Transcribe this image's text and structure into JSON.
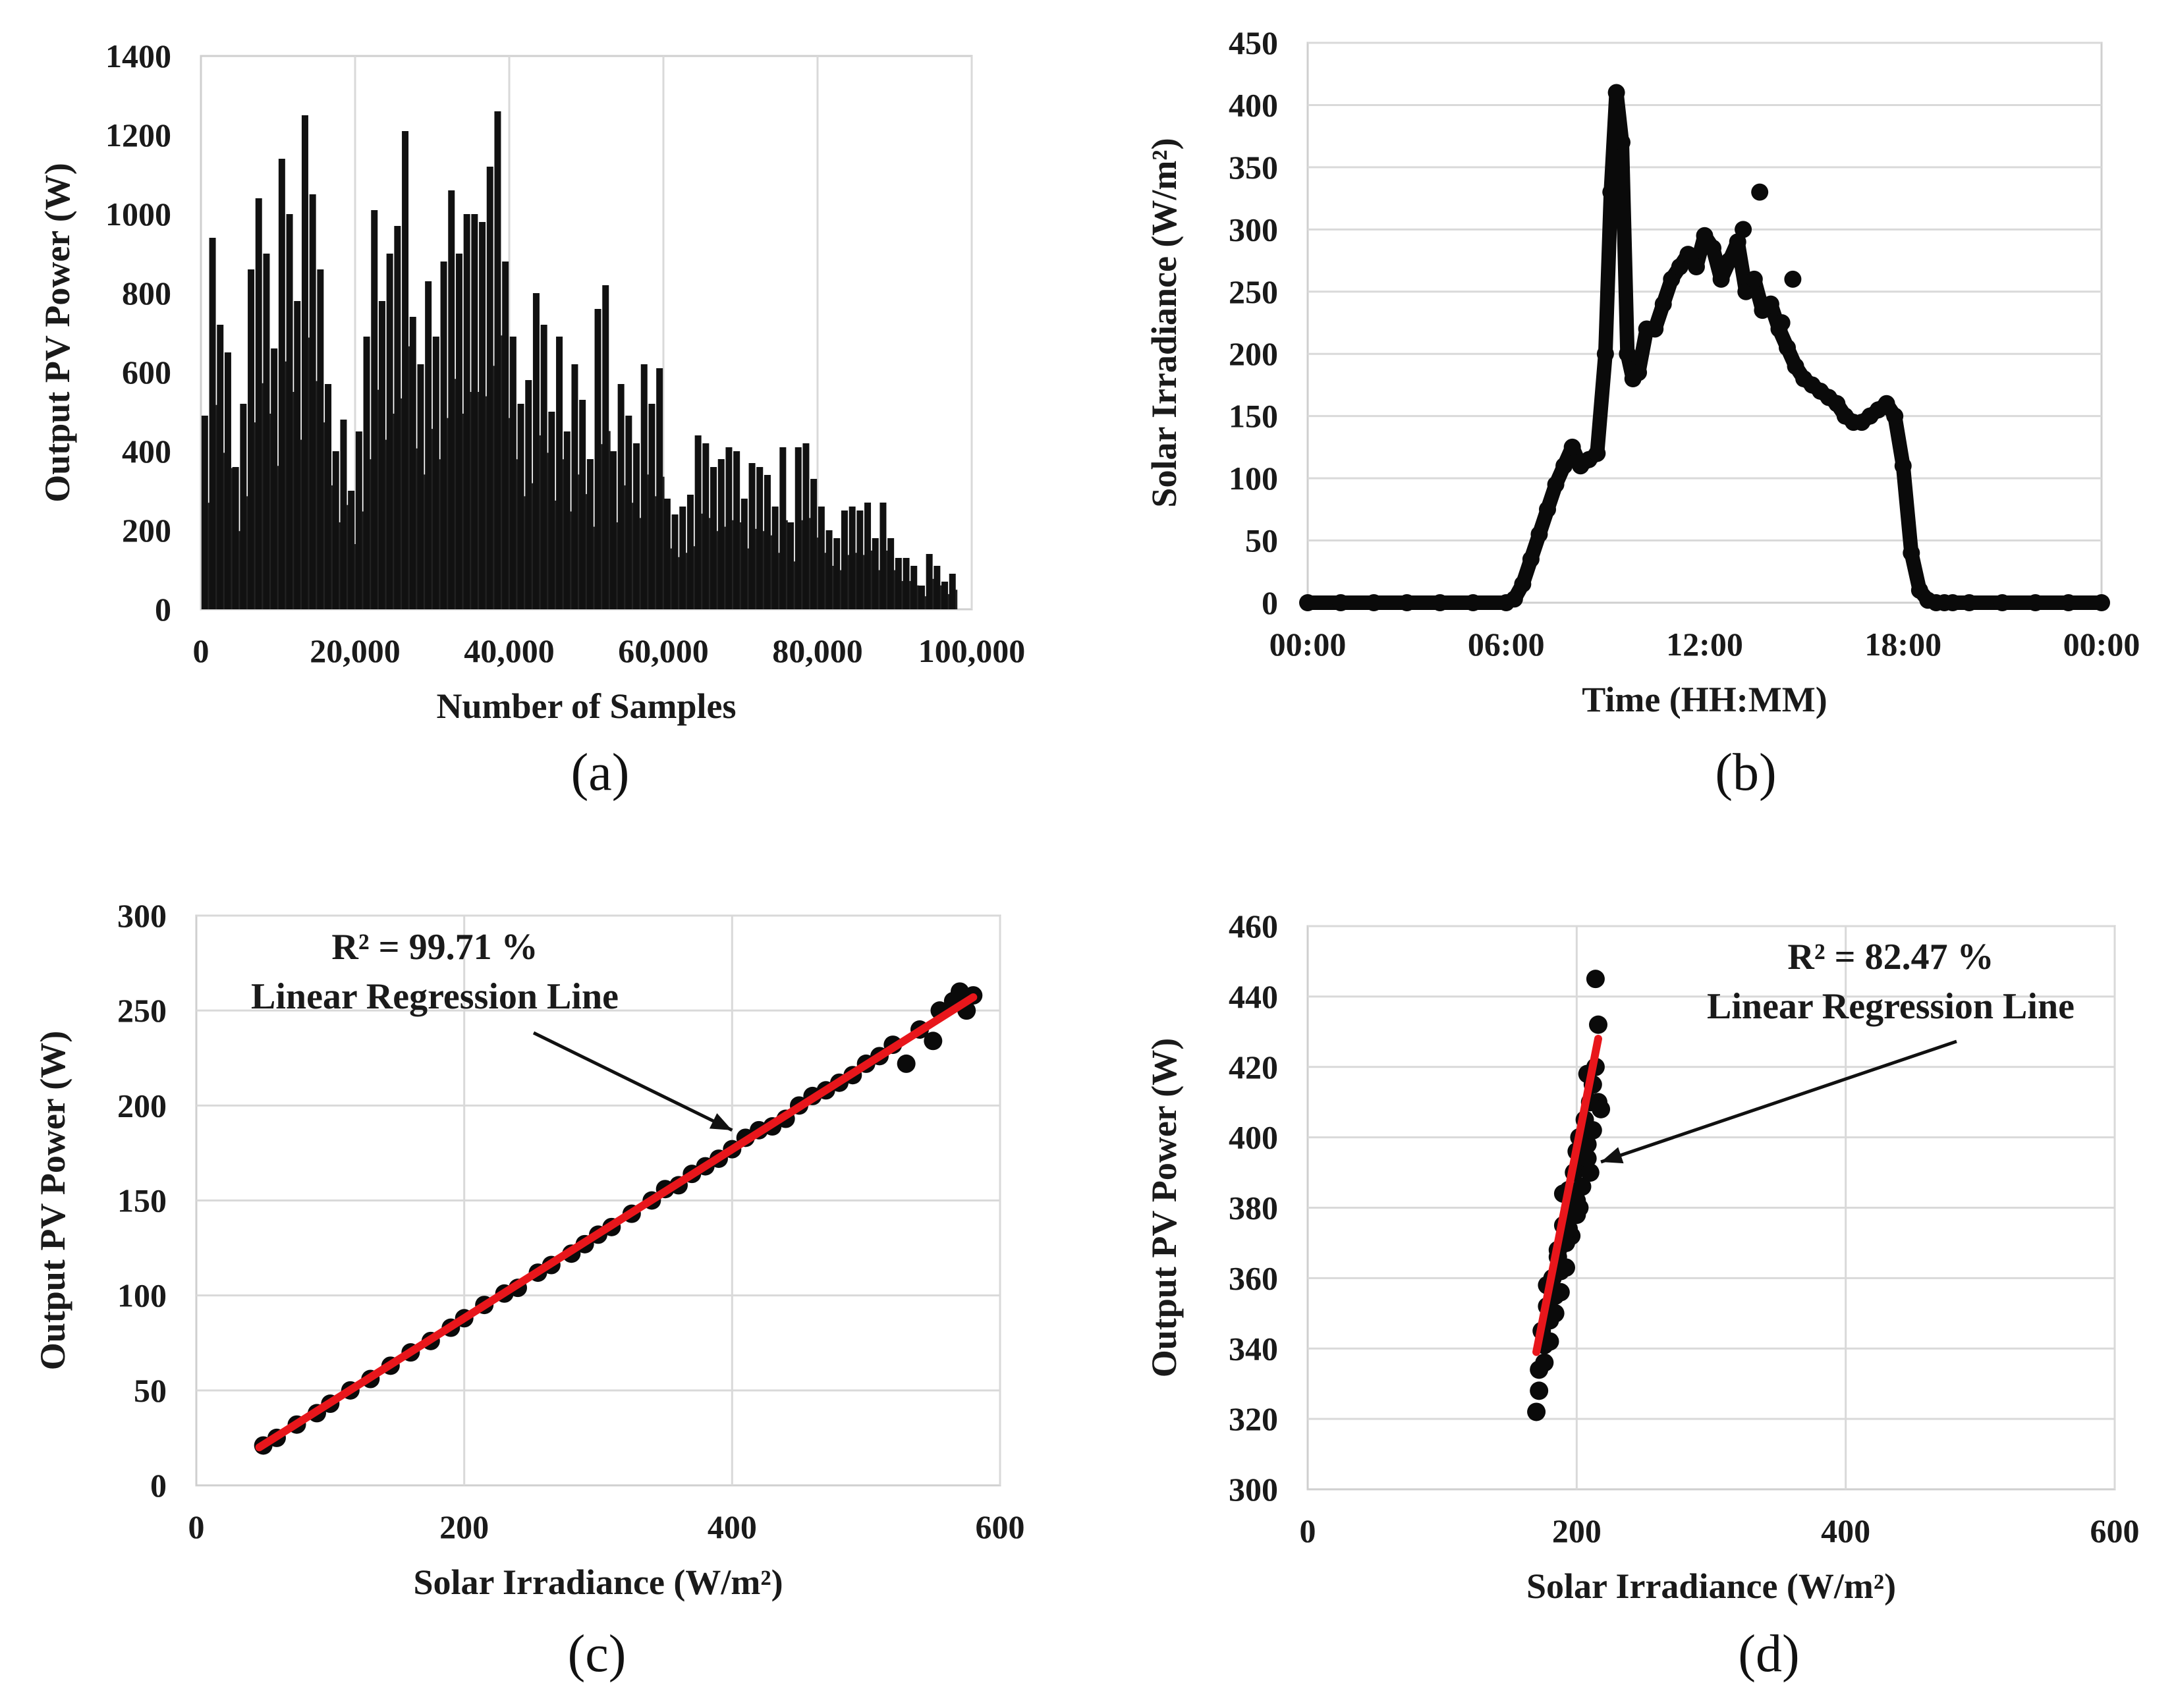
{
  "chart_data": [
    {
      "panel": "(a)",
      "type": "bar",
      "xlabel": "Number of Samples",
      "ylabel": "Output PV Power (W)",
      "xlim": [
        0,
        100000
      ],
      "ylim": [
        0,
        1400
      ],
      "x_ticks": [
        "0",
        "20,000",
        "40,000",
        "60,000",
        "80,000",
        "100,000"
      ],
      "y_ticks": [
        "0",
        "200",
        "400",
        "600",
        "800",
        "1000",
        "1200",
        "1400"
      ],
      "grid": "vertical",
      "series": [
        {
          "x": [
            500,
            1500,
            2500,
            3500,
            4500,
            5500,
            6500,
            7500,
            8500,
            9500,
            10500,
            11500,
            12500,
            13500,
            14500,
            15500,
            16500,
            17500,
            18500,
            19500,
            20500,
            21500,
            22500,
            23500,
            24500,
            25500,
            26500,
            27500,
            28500,
            29500,
            30500,
            31500,
            32500,
            33500,
            34500,
            35500,
            36500,
            37500,
            38500,
            39500,
            40500,
            41500,
            42500,
            43500,
            44500,
            45500,
            46500,
            47500,
            48500,
            49500,
            50500,
            51500,
            52500,
            53500,
            54500,
            55500,
            56500,
            57500,
            58500,
            59500,
            60500,
            61500,
            62500,
            63500,
            64500,
            65500,
            66500,
            67500,
            68500,
            69500,
            70500,
            71500,
            72500,
            73500,
            74500,
            75500,
            76500,
            77500,
            78500,
            79500,
            80500,
            81500,
            82500,
            83500,
            84500,
            85500,
            86500,
            87500,
            88500,
            89500,
            90500,
            91500,
            92500,
            93500,
            94500,
            95500,
            96500,
            97500
          ],
          "values": [
            490,
            940,
            720,
            650,
            360,
            520,
            860,
            1040,
            900,
            660,
            1140,
            1000,
            780,
            1250,
            1050,
            860,
            570,
            400,
            480,
            300,
            450,
            690,
            1010,
            780,
            900,
            970,
            1210,
            740,
            620,
            830,
            690,
            880,
            1060,
            900,
            1000,
            1000,
            980,
            1120,
            1260,
            880,
            690,
            520,
            580,
            800,
            720,
            500,
            690,
            450,
            620,
            530,
            380,
            760,
            820,
            400,
            570,
            490,
            420,
            620,
            520,
            610,
            280,
            240,
            260,
            290,
            440,
            420,
            360,
            380,
            410,
            400,
            280,
            370,
            360,
            340,
            260,
            410,
            220,
            410,
            420,
            330,
            260,
            200,
            180,
            250,
            260,
            250,
            270,
            180,
            270,
            180,
            130,
            130,
            110,
            60,
            140,
            110,
            70,
            90
          ]
        }
      ]
    },
    {
      "panel": "(b)",
      "type": "scatter",
      "xlabel": "Time (HH:MM)",
      "ylabel": "Solar Irradiance (W/m²)",
      "xlim": [
        "00:00",
        "24:00"
      ],
      "ylim": [
        0,
        450
      ],
      "x_ticks": [
        "00:00",
        "06:00",
        "12:00",
        "18:00",
        "00:00"
      ],
      "y_ticks": [
        "0",
        "50",
        "100",
        "150",
        "200",
        "250",
        "300",
        "350",
        "400",
        "450"
      ],
      "grid": "horizontal",
      "series": [
        {
          "x": [
            "00:00",
            "01:00",
            "02:00",
            "03:00",
            "04:00",
            "05:00",
            "06:00",
            "06:15",
            "06:30",
            "06:45",
            "07:00",
            "07:15",
            "07:30",
            "07:45",
            "08:00",
            "08:15",
            "08:30",
            "08:45",
            "09:00",
            "09:10",
            "09:20",
            "09:30",
            "09:40",
            "09:50",
            "10:00",
            "10:15",
            "10:30",
            "10:45",
            "11:00",
            "11:15",
            "11:30",
            "11:45",
            "12:00",
            "12:15",
            "12:30",
            "12:45",
            "13:00",
            "13:15",
            "13:30",
            "13:45",
            "14:00",
            "14:15",
            "14:30",
            "14:45",
            "15:00",
            "15:15",
            "15:30",
            "15:45",
            "16:00",
            "16:15",
            "16:30",
            "16:45",
            "17:00",
            "17:15",
            "17:30",
            "17:45",
            "18:00",
            "18:15",
            "18:30",
            "18:45",
            "19:00",
            "19:15",
            "19:30",
            "20:00",
            "21:00",
            "22:00",
            "23:00",
            "24:00"
          ],
          "values": [
            0,
            0,
            0,
            0,
            0,
            0,
            0,
            3,
            15,
            35,
            55,
            75,
            95,
            110,
            125,
            110,
            115,
            120,
            200,
            330,
            410,
            370,
            200,
            180,
            185,
            220,
            220,
            240,
            260,
            270,
            280,
            270,
            295,
            285,
            260,
            275,
            290,
            250,
            260,
            235,
            240,
            220,
            205,
            190,
            180,
            175,
            170,
            165,
            160,
            150,
            145,
            145,
            150,
            155,
            160,
            150,
            110,
            40,
            10,
            2,
            0,
            0,
            0,
            0,
            0,
            0,
            0,
            0
          ]
        },
        {
          "x": [
            "13:40",
            "14:40",
            "13:10",
            "14:20"
          ],
          "values": [
            330,
            260,
            300,
            225
          ]
        }
      ]
    },
    {
      "panel": "(c)",
      "type": "scatter",
      "xlabel": "Solar Irradiance (W/m²)",
      "ylabel": "Output PV Power (W)",
      "xlim": [
        0,
        600
      ],
      "ylim": [
        0,
        300
      ],
      "x_ticks": [
        "0",
        "200",
        "400",
        "600"
      ],
      "y_ticks": [
        "0",
        "50",
        "100",
        "150",
        "200",
        "250",
        "300"
      ],
      "grid": "both",
      "annotation": [
        "R² = 99.71 %",
        "Linear Regression Line"
      ],
      "regression_line": {
        "x": [
          47,
          580
        ],
        "y": [
          20,
          257
        ],
        "color": "#e8161b"
      },
      "series": [
        {
          "x": [
            50,
            60,
            75,
            90,
            100,
            115,
            130,
            145,
            160,
            175,
            190,
            200,
            215,
            230,
            240,
            255,
            265,
            280,
            290,
            300,
            310,
            325,
            340,
            350,
            360,
            370,
            380,
            390,
            400,
            410,
            420,
            430,
            440,
            450,
            460,
            470,
            480,
            490,
            500,
            510,
            520,
            530,
            540,
            550,
            555,
            565,
            570,
            575,
            580
          ],
          "values": [
            21,
            25,
            32,
            38,
            43,
            50,
            56,
            63,
            70,
            76,
            83,
            88,
            95,
            101,
            104,
            112,
            116,
            122,
            127,
            132,
            136,
            143,
            150,
            156,
            158,
            164,
            168,
            172,
            177,
            183,
            187,
            189,
            193,
            200,
            205,
            208,
            212,
            216,
            222,
            226,
            232,
            222,
            240,
            234,
            250,
            255,
            260,
            250,
            258
          ]
        }
      ]
    },
    {
      "panel": "(d)",
      "type": "scatter",
      "xlabel": "Solar Irradiance (W/m²)",
      "ylabel": "Output PV Power (W)",
      "xlim": [
        0,
        600
      ],
      "ylim": [
        300,
        460
      ],
      "x_ticks": [
        "0",
        "200",
        "400",
        "600"
      ],
      "y_ticks": [
        "300",
        "320",
        "340",
        "360",
        "380",
        "400",
        "420",
        "440",
        "460"
      ],
      "grid": "both",
      "annotation": [
        "R² = 82.47 %",
        "Linear Regression Line"
      ],
      "regression_line": {
        "x": [
          170,
          216
        ],
        "y": [
          339,
          428
        ],
        "color": "#e8161b"
      },
      "series": [
        {
          "x": [
            170,
            172,
            174,
            176,
            178,
            180,
            182,
            184,
            186,
            188,
            190,
            192,
            194,
            196,
            198,
            200,
            202,
            204,
            206,
            208,
            210,
            212,
            214,
            216,
            172,
            176,
            180,
            184,
            188,
            192,
            196,
            200,
            204,
            208,
            212,
            216,
            178,
            186,
            194,
            202,
            210,
            218,
            208,
            214,
            200,
            190
          ],
          "values": [
            322,
            334,
            345,
            341,
            352,
            348,
            360,
            355,
            368,
            362,
            375,
            370,
            385,
            378,
            390,
            382,
            400,
            392,
            405,
            398,
            410,
            415,
            420,
            432,
            328,
            336,
            342,
            350,
            356,
            363,
            372,
            378,
            386,
            394,
            402,
            410,
            358,
            366,
            374,
            380,
            390,
            408,
            418,
            445,
            396,
            384
          ]
        }
      ]
    }
  ],
  "captions": [
    "(a)",
    "(b)",
    "(c)",
    "(d)"
  ]
}
